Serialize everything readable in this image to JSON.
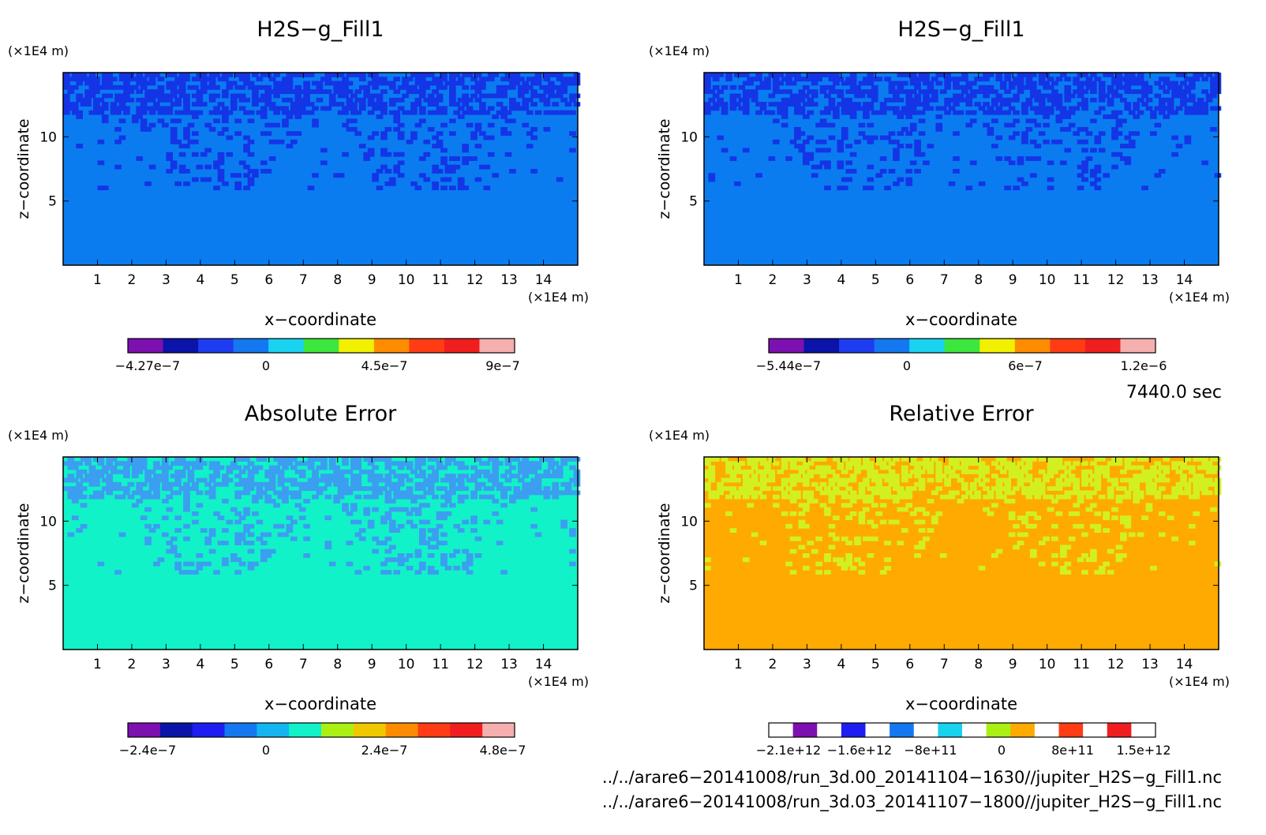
{
  "panels": [
    {
      "title": "H2S−g_Fill1",
      "ylabel": "z−coordinate",
      "xlabel": "x−coordinate",
      "x_unit": "(×1E4 m)",
      "y_unit": "(×1E4 m)",
      "x_ticks": [
        "1",
        "2",
        "3",
        "4",
        "5",
        "6",
        "7",
        "8",
        "9",
        "10",
        "11",
        "12",
        "13",
        "14"
      ],
      "y_ticks": [
        "5",
        "10"
      ],
      "background": "#0a7cf0",
      "cell": "#1435e6",
      "colorbar": {
        "colors": [
          "#7d10b0",
          "#0a14a8",
          "#1e3cf0",
          "#1478f0",
          "#19d2f0",
          "#3ce63c",
          "#f0f000",
          "#ff8c00",
          "#ff3c14",
          "#f01e1e",
          "#f5afaf"
        ],
        "labels": [
          "−4.27e−7",
          "0",
          "4.5e−7",
          "9e−7"
        ]
      }
    },
    {
      "title": "H2S−g_Fill1",
      "ylabel": "z−coordinate",
      "xlabel": "x−coordinate",
      "x_unit": "(×1E4 m)",
      "y_unit": "(×1E4 m)",
      "x_ticks": [
        "1",
        "2",
        "3",
        "4",
        "5",
        "6",
        "7",
        "8",
        "9",
        "10",
        "11",
        "12",
        "13",
        "14"
      ],
      "y_ticks": [
        "5",
        "10"
      ],
      "background": "#0a7cf0",
      "cell": "#1435e6",
      "colorbar": {
        "colors": [
          "#7d10b0",
          "#0a14a8",
          "#1e3cf0",
          "#1478f0",
          "#19d2f0",
          "#3ce63c",
          "#f0f000",
          "#ff8c00",
          "#ff3c14",
          "#f01e1e",
          "#f5afaf"
        ],
        "labels": [
          "−5.44e−7",
          "0",
          "6e−7",
          "1.2e−6"
        ]
      }
    },
    {
      "title": "Absolute Error",
      "ylabel": "z−coordinate",
      "xlabel": "x−coordinate",
      "x_unit": "(×1E4 m)",
      "y_unit": "(×1E4 m)",
      "x_ticks": [
        "1",
        "2",
        "3",
        "4",
        "5",
        "6",
        "7",
        "8",
        "9",
        "10",
        "11",
        "12",
        "13",
        "14"
      ],
      "y_ticks": [
        "5",
        "10"
      ],
      "background": "#12f2c8",
      "cell": "#3c9ef0",
      "colorbar": {
        "colors": [
          "#7d10b0",
          "#0a14a8",
          "#1e1ef0",
          "#1478f0",
          "#14b4f0",
          "#12f2c8",
          "#aaf014",
          "#f0c800",
          "#ff8c00",
          "#ff3c14",
          "#f01e1e",
          "#f5afaf"
        ],
        "labels": [
          "−2.4e−7",
          "0",
          "2.4e−7",
          "4.8e−7"
        ]
      }
    },
    {
      "title": "Relative Error",
      "ylabel": "z−coordinate",
      "xlabel": "x−coordinate",
      "x_unit": "(×1E4 m)",
      "y_unit": "(×1E4 m)",
      "x_ticks": [
        "1",
        "2",
        "3",
        "4",
        "5",
        "6",
        "7",
        "8",
        "9",
        "10",
        "11",
        "12",
        "13",
        "14"
      ],
      "y_ticks": [
        "5",
        "10"
      ],
      "background": "#ffaa00",
      "cell": "#d2f020",
      "colorbar": {
        "colors": [
          "#ffffff",
          "#7d10b0",
          "#ffffff",
          "#1e1ef0",
          "#ffffff",
          "#1478f0",
          "#ffffff",
          "#19d2f0",
          "#ffffff",
          "#aaf014",
          "#ffaa00",
          "#ffffff",
          "#ff3c14",
          "#ffffff",
          "#f01e1e",
          "#ffffff"
        ],
        "labels": [
          "−2.1e+12",
          "−1.6e+12",
          "−8e+11",
          "0",
          "8e+11",
          "1.5e+12"
        ]
      }
    }
  ],
  "time_label": "7440.0 sec",
  "file_paths": [
    "../../arare6−20141008/run_3d.00_20141104−1630//jupiter_H2S−g_Fill1.nc",
    "../../arare6−20141008/run_3d.03_20141107−1800//jupiter_H2S−g_Fill1.nc"
  ],
  "chart_data": [
    {
      "type": "heatmap",
      "title": "H2S−g_Fill1",
      "xlabel": "x−coordinate",
      "ylabel": "z−coordinate",
      "x_unit": "(×1E4 m)",
      "y_unit": "(×1E4 m)",
      "xlim": [
        0,
        15
      ],
      "ylim": [
        0,
        15
      ],
      "colorbar_ticks": [
        -4.27e-07,
        0,
        4.5e-07,
        9e-07
      ]
    },
    {
      "type": "heatmap",
      "title": "H2S−g_Fill1",
      "xlabel": "x−coordinate",
      "ylabel": "z−coordinate",
      "x_unit": "(×1E4 m)",
      "y_unit": "(×1E4 m)",
      "xlim": [
        0,
        15
      ],
      "ylim": [
        0,
        15
      ],
      "colorbar_ticks": [
        -5.44e-07,
        0,
        6e-07,
        1.2e-06
      ]
    },
    {
      "type": "heatmap",
      "title": "Absolute Error",
      "xlabel": "x−coordinate",
      "ylabel": "z−coordinate",
      "x_unit": "(×1E4 m)",
      "y_unit": "(×1E4 m)",
      "xlim": [
        0,
        15
      ],
      "ylim": [
        0,
        15
      ],
      "colorbar_ticks": [
        -2.4e-07,
        0,
        2.4e-07,
        4.8e-07
      ]
    },
    {
      "type": "heatmap",
      "title": "Relative Error",
      "xlabel": "x−coordinate",
      "ylabel": "z−coordinate",
      "x_unit": "(×1E4 m)",
      "y_unit": "(×1E4 m)",
      "xlim": [
        0,
        15
      ],
      "ylim": [
        0,
        15
      ],
      "colorbar_ticks": [
        -2100000000000.0,
        -1600000000000.0,
        -800000000000.0,
        0,
        800000000000.0,
        1500000000000.0
      ]
    }
  ]
}
